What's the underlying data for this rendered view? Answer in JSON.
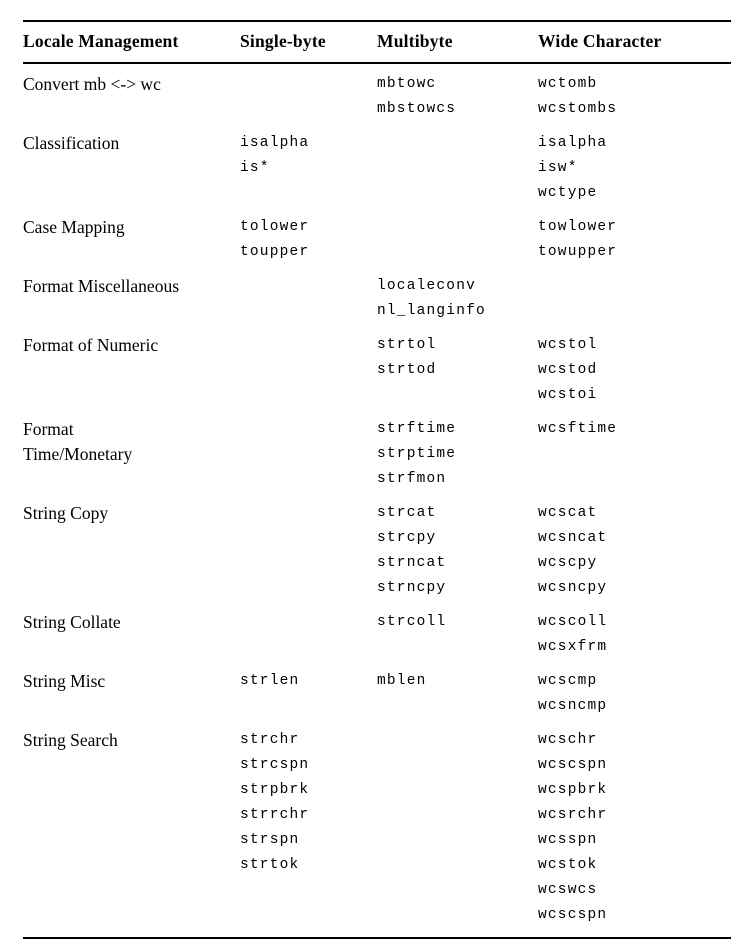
{
  "table": {
    "headers": [
      "Locale Management",
      "Single-byte",
      "Multibyte",
      "Wide Character"
    ],
    "rows": [
      {
        "category": [
          "Convert mb <-> wc"
        ],
        "single_byte": [],
        "multibyte": [
          "mbtowc",
          "mbstowcs"
        ],
        "wide_character": [
          "wctomb",
          "wcstombs"
        ]
      },
      {
        "category": [
          "Classification"
        ],
        "single_byte": [
          "isalpha",
          "is*"
        ],
        "multibyte": [],
        "wide_character": [
          "isalpha",
          "isw*",
          "wctype"
        ]
      },
      {
        "category": [
          "Case Mapping"
        ],
        "single_byte": [
          "tolower",
          "toupper"
        ],
        "multibyte": [],
        "wide_character": [
          "towlower",
          "towupper"
        ]
      },
      {
        "category": [
          "Format Miscellaneous"
        ],
        "single_byte": [],
        "multibyte": [
          "localeconv",
          "nl_langinfo"
        ],
        "wide_character": []
      },
      {
        "category": [
          "Format of Numeric"
        ],
        "single_byte": [],
        "multibyte": [
          "strtol",
          "strtod"
        ],
        "wide_character": [
          "wcstol",
          "wcstod",
          "wcstoi"
        ]
      },
      {
        "category": [
          "Format",
          "Time/Monetary"
        ],
        "single_byte": [],
        "multibyte": [
          "strftime",
          "strptime",
          "strfmon"
        ],
        "wide_character": [
          "wcsftime"
        ]
      },
      {
        "category": [
          "String Copy"
        ],
        "single_byte": [],
        "multibyte": [
          "strcat",
          "strcpy",
          "strncat",
          "strncpy"
        ],
        "wide_character": [
          "wcscat",
          "wcsncat",
          "wcscpy",
          "wcsncpy"
        ]
      },
      {
        "category": [
          "String Collate"
        ],
        "single_byte": [],
        "multibyte": [
          "strcoll"
        ],
        "wide_character": [
          "wcscoll",
          "wcsxfrm"
        ]
      },
      {
        "category": [
          "String Misc"
        ],
        "single_byte": [
          "strlen"
        ],
        "multibyte": [
          "mblen"
        ],
        "wide_character": [
          "wcscmp",
          "wcsncmp"
        ]
      },
      {
        "category": [
          "String Search"
        ],
        "single_byte": [
          "strchr",
          "strcspn",
          "strpbrk",
          "strrchr",
          "strspn",
          "strtok"
        ],
        "multibyte": [],
        "wide_character": [
          "wcschr",
          "wcscspn",
          "wcspbrk",
          "wcsrchr",
          "wcsspn",
          "wcstok",
          "wcswcs",
          "wcscspn"
        ]
      }
    ],
    "colors": {
      "background": "#ffffff",
      "text": "#000000",
      "rule": "#000000"
    }
  }
}
